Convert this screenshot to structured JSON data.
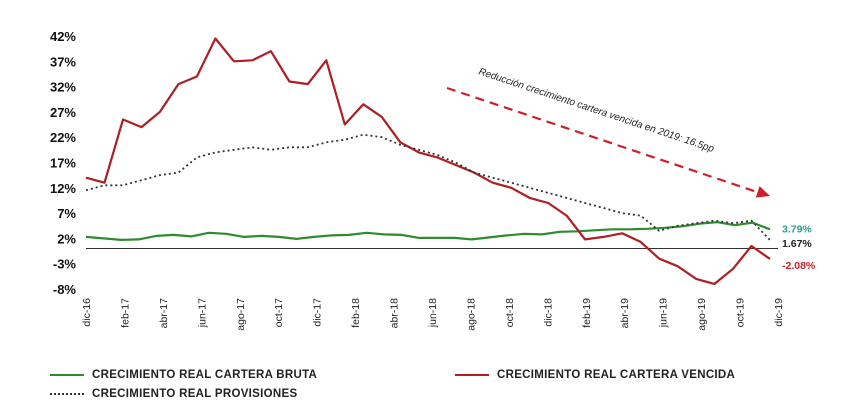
{
  "chart_data": {
    "type": "line",
    "title": "",
    "xlabel": "",
    "ylabel": "",
    "ylim": [
      -8,
      42
    ],
    "yticks": [
      "42%",
      "37%",
      "32%",
      "27%",
      "22%",
      "17%",
      "12%",
      "7%",
      "2%",
      "-3%",
      "-8%"
    ],
    "ytick_values": [
      42,
      37,
      32,
      27,
      22,
      17,
      12,
      7,
      2,
      -3,
      -8
    ],
    "x_tick_labels": [
      "dic-16",
      "feb-17",
      "abr-17",
      "jun-17",
      "ago-17",
      "oct-17",
      "dic-17",
      "feb-18",
      "abr-18",
      "jun-18",
      "ago-18",
      "oct-18",
      "dic-18",
      "feb-19",
      "abr-19",
      "jun-19",
      "ago-19",
      "oct-19",
      "dic-19"
    ],
    "grid": false,
    "legend_position": "bottom",
    "series": [
      {
        "name": "CRECIMIENTO REAL CARTERA BRUTA",
        "color": "#2e8b2e",
        "style": "solid",
        "values": [
          2.3,
          2.0,
          1.7,
          1.8,
          2.5,
          2.7,
          2.4,
          3.1,
          2.9,
          2.3,
          2.5,
          2.3,
          1.9,
          2.3,
          2.6,
          2.7,
          3.1,
          2.8,
          2.7,
          2.1,
          2.1,
          2.1,
          1.8,
          2.2,
          2.6,
          2.9,
          2.8,
          3.3,
          3.4,
          3.6,
          3.8,
          3.8,
          3.9,
          4.1,
          4.4,
          4.9,
          5.2,
          4.6,
          5.1,
          3.79
        ]
      },
      {
        "name": "CRECIMIENTO REAL CARTERA VENCIDA",
        "color": "#b01e23",
        "style": "solid",
        "values": [
          14.0,
          13.0,
          25.5,
          24.0,
          27.0,
          32.5,
          34.0,
          41.5,
          37.0,
          37.2,
          39.0,
          33.0,
          32.5,
          37.2,
          24.5,
          28.5,
          26.0,
          21.0,
          19.0,
          18.0,
          16.5,
          15.0,
          13.0,
          12.0,
          10.0,
          9.0,
          6.5,
          1.8,
          2.3,
          3.0,
          1.3,
          -2.0,
          -3.5,
          -6.0,
          -7.0,
          -4.0,
          0.5,
          -2.08
        ]
      },
      {
        "name": "CRECIMIENTO REAL PROVISIONES",
        "color": "#333333",
        "style": "dotted",
        "values": [
          11.5,
          12.5,
          12.5,
          13.5,
          14.5,
          15.0,
          18.0,
          19.0,
          19.5,
          20.0,
          19.5,
          20.0,
          20.0,
          21.0,
          21.5,
          22.5,
          22.0,
          20.5,
          19.5,
          18.5,
          17.0,
          15.0,
          14.0,
          13.0,
          12.0,
          11.0,
          10.0,
          9.0,
          8.0,
          7.0,
          6.5,
          3.5,
          4.5,
          5.0,
          5.5,
          5.0,
          5.5,
          1.67
        ]
      }
    ],
    "end_labels": [
      {
        "text": "3.79%",
        "color": "#2a9d8f"
      },
      {
        "text": "1.67%",
        "color": "#222222"
      },
      {
        "text": "-2.08%",
        "color": "#d0202a"
      }
    ],
    "annotation": {
      "text": "Reducción crecimiento cartera vencida en 2019: 16.5pp",
      "arrow_color": "#d0202a"
    }
  }
}
